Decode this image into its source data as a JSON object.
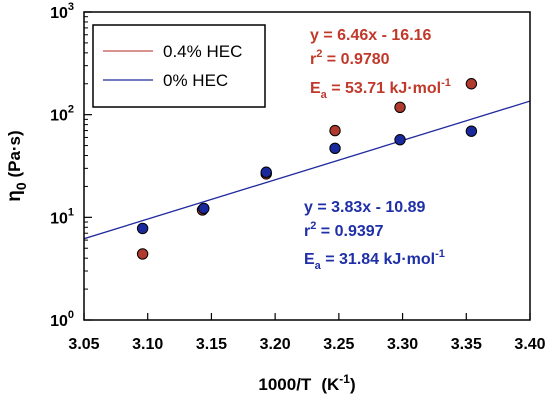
{
  "chart_data": {
    "type": "scatter",
    "xlabel_main": "1000/T",
    "xlabel_unit": "(K",
    "xlabel_unit_sup": "-1",
    "xlabel_unit_close": ")",
    "ylabel_symbol": "η",
    "ylabel_sub": "0",
    "ylabel_unit": " (Pa·s)",
    "xlim": [
      3.05,
      3.4
    ],
    "ylim": [
      1,
      1000
    ],
    "yscale": "log",
    "x_ticks": [
      "3.05",
      "3.10",
      "3.15",
      "3.20",
      "3.25",
      "3.30",
      "3.35",
      "3.40"
    ],
    "y_ticks": [
      {
        "base": "10",
        "exp": "0",
        "value": 1
      },
      {
        "base": "10",
        "exp": "1",
        "value": 10
      },
      {
        "base": "10",
        "exp": "2",
        "value": 100
      },
      {
        "base": "10",
        "exp": "3",
        "value": 1000
      }
    ],
    "legend_placement": "top-left",
    "grid": false,
    "series": [
      {
        "name": "0.4% HEC",
        "line_color": "#c0504d",
        "marker_color": "#b03a2e",
        "x": [
          3.096,
          3.143,
          3.193,
          3.247,
          3.298,
          3.354
        ],
        "y": [
          4.4,
          11.8,
          26.5,
          70,
          118,
          200
        ],
        "fit": {
          "slope": 6.46,
          "intercept": -16.16
        },
        "annotation": {
          "equation": "y = 6.46x - 16.16",
          "r2_label": "r",
          "r2_sup": "2",
          "r2_value": " = 0.9780",
          "ea_label": "E",
          "ea_sub": "a",
          "ea_value": " = 53.71 kJ·mol",
          "ea_sup": "-1",
          "color": "#c0392b"
        }
      },
      {
        "name": "0% HEC",
        "line_color": "#1f2a9e",
        "marker_color": "#1a2a9c",
        "x": [
          3.096,
          3.144,
          3.193,
          3.247,
          3.298,
          3.354
        ],
        "y": [
          7.8,
          12.2,
          27.5,
          47,
          57,
          69
        ],
        "fit": {
          "slope": 3.83,
          "intercept": -10.89
        },
        "annotation": {
          "equation": "y = 3.83x - 10.89",
          "r2_label": "r",
          "r2_sup": "2",
          "r2_value": " = 0.9397",
          "ea_label": "E",
          "ea_sub": "a",
          "ea_value": " = 31.84 kJ·mol",
          "ea_sup": "-1",
          "color": "#1f2fa8"
        }
      }
    ]
  }
}
